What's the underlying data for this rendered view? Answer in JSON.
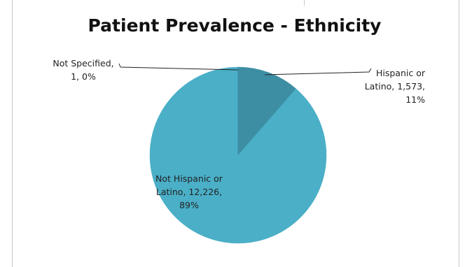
{
  "chart_data": {
    "type": "pie",
    "title": "Patient Prevalence - Ethnicity",
    "slices": [
      {
        "label": "Hispanic or Latino",
        "value": 1573,
        "percent": "11%",
        "color": "#3d8ea3",
        "label_lines": [
          "Hispanic or",
          "Latino, 1,573,",
          "11%"
        ]
      },
      {
        "label": "Not Hispanic or Latino",
        "value": 12226,
        "percent": "89%",
        "color": "#4aafc7",
        "label_lines": [
          "Not Hispanic or",
          "Latino, 12,226,",
          "89%"
        ]
      },
      {
        "label": "Not Specified",
        "value": 1,
        "percent": "0%",
        "color": "#3a86a0",
        "label_lines": [
          "Not Specified,",
          "1, 0%"
        ]
      }
    ],
    "start_angle_deg": 0,
    "direction": "clockwise",
    "legend": "none"
  }
}
